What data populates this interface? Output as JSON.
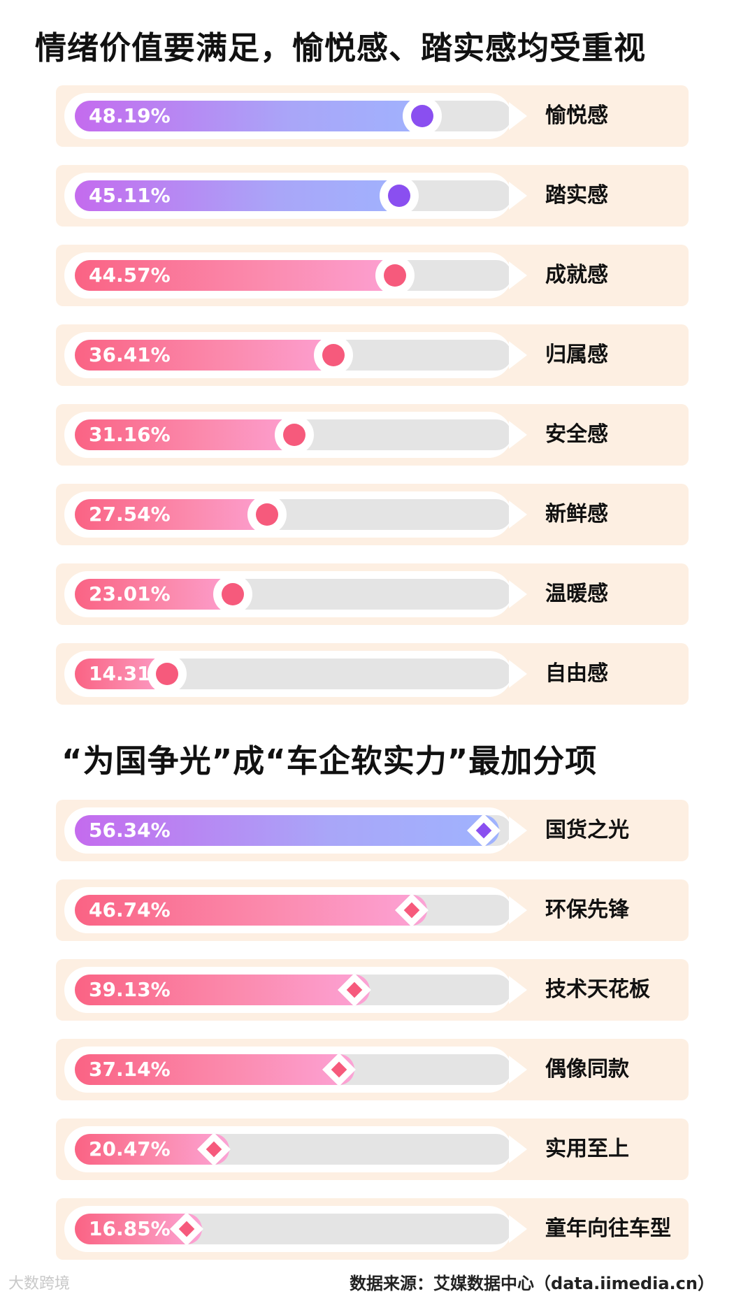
{
  "title1": "情绪价值要满足，愉悦感、踏实感均受重视",
  "title2": "“为国争光”成“车企软实力”最加分项",
  "source": "数据来源：艾媒数据中心（data.iimedia.cn）",
  "watermark": "大数跨境",
  "colors": {
    "row_bg": "#fdefe2",
    "track": "#e4e4e4",
    "purple_dot": "#8a4ff0",
    "pink_dot": "#f65a7c",
    "purple_gradient": [
      "#c46bee",
      "#9fb3fe"
    ],
    "pink_gradient": [
      "#fa6384",
      "#fca3d6"
    ]
  },
  "chart_data": [
    {
      "type": "bar",
      "title": "情绪价值要满足，愉悦感、踏实感均受重视",
      "categories": [
        "愉悦感",
        "踏实感",
        "成就感",
        "归属感",
        "安全感",
        "新鲜感",
        "温暖感",
        "自由感"
      ],
      "values": [
        48.19,
        45.11,
        44.57,
        36.41,
        31.16,
        27.54,
        23.01,
        14.31
      ],
      "labels": [
        "48.19%",
        "45.11%",
        "44.57%",
        "36.41%",
        "31.16%",
        "27.54%",
        "23.01%",
        "14.31%"
      ],
      "highlight": [
        true,
        true,
        false,
        false,
        false,
        false,
        false,
        false
      ],
      "marker": "circle",
      "unit": "%"
    },
    {
      "type": "bar",
      "title": "“为国争光”成“车企软实力”最加分项",
      "categories": [
        "国货之光",
        "环保先锋",
        "技术天花板",
        "偶像同款",
        "实用至上",
        "童年向往车型"
      ],
      "values": [
        56.34,
        46.74,
        39.13,
        37.14,
        20.47,
        16.85
      ],
      "labels": [
        "56.34%",
        "46.74%",
        "39.13%",
        "37.14%",
        "20.47%",
        "16.85%"
      ],
      "highlight": [
        true,
        false,
        false,
        false,
        false,
        false
      ],
      "marker": "diamond",
      "unit": "%"
    }
  ]
}
